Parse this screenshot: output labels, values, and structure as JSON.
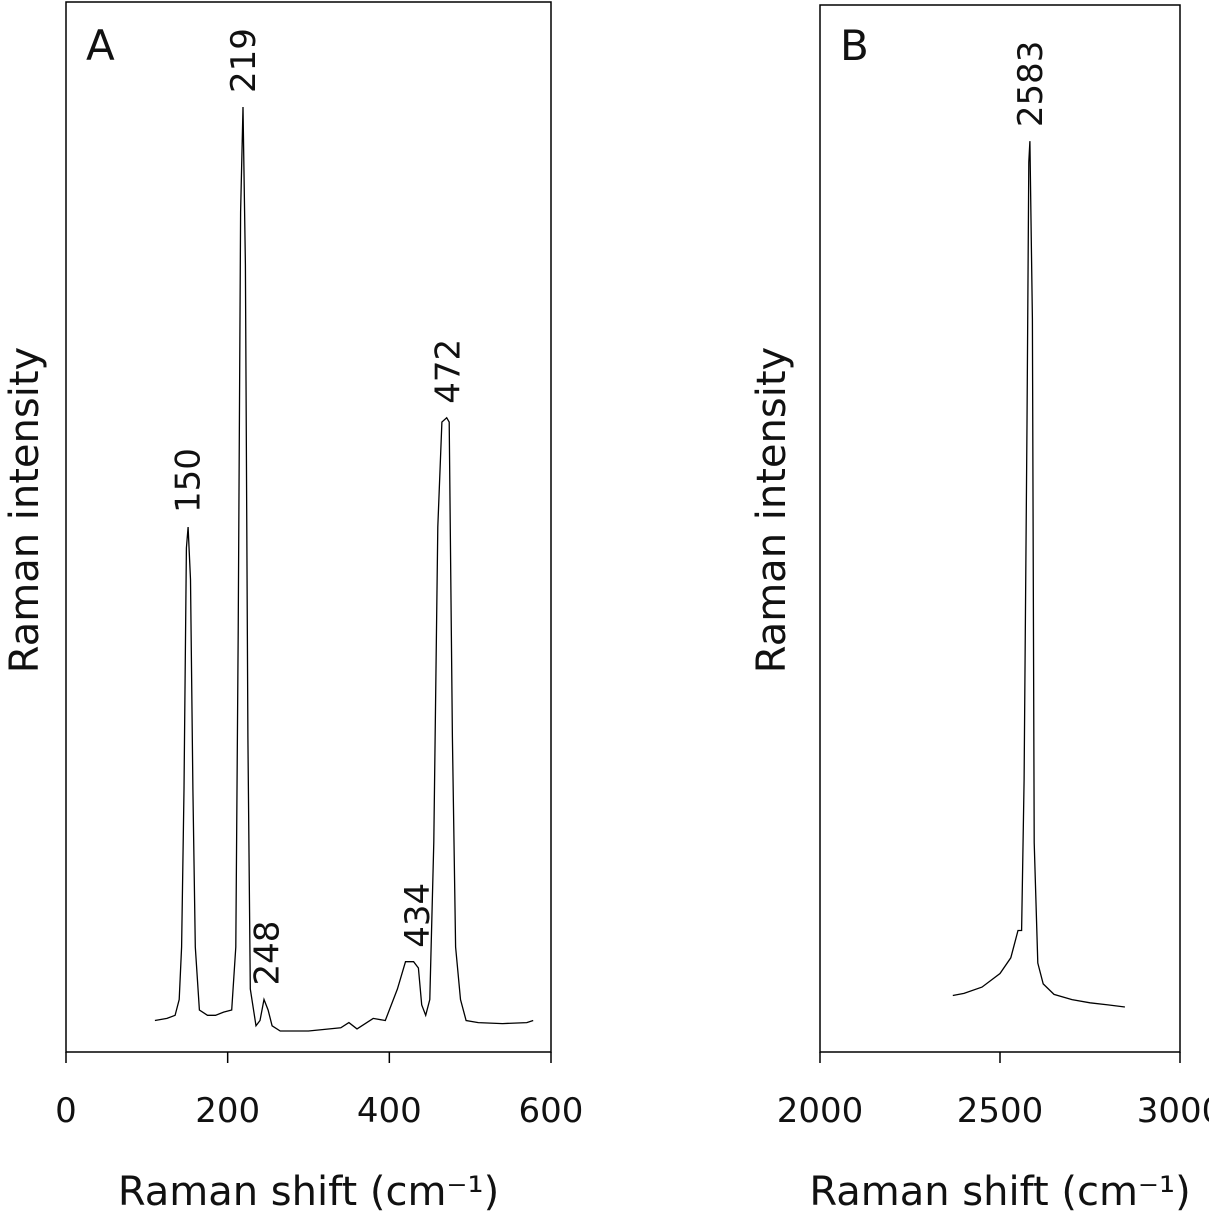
{
  "chart_data": [
    {
      "type": "line",
      "panel_label": "A",
      "ylabel": "Raman intensity",
      "xlabel": "Raman shift (cm⁻¹)",
      "xlim": [
        0,
        600
      ],
      "xticks": [
        0,
        200,
        400,
        600
      ],
      "ylim": [
        0,
        100
      ],
      "color": "#000000",
      "peak_labels": [
        150,
        219,
        248,
        434,
        472
      ],
      "x": [
        110,
        125,
        135,
        140,
        143,
        146,
        149,
        151,
        154,
        157,
        160,
        165,
        175,
        185,
        195,
        205,
        210,
        213,
        216,
        219,
        222,
        225,
        228,
        235,
        240,
        245,
        250,
        255,
        265,
        300,
        340,
        350,
        360,
        380,
        395,
        410,
        420,
        430,
        436,
        440,
        445,
        450,
        455,
        460,
        465,
        471,
        474,
        478,
        482,
        488,
        495,
        510,
        540,
        570,
        578
      ],
      "values": [
        3,
        3.2,
        3.5,
        5,
        10,
        25,
        48,
        50,
        45,
        25,
        10,
        4,
        3.5,
        3.5,
        3.8,
        4,
        10,
        40,
        80,
        90,
        75,
        30,
        6,
        2.5,
        3,
        5,
        4,
        2.5,
        2,
        2,
        2.3,
        2.8,
        2.2,
        3.2,
        3,
        6,
        8.6,
        8.6,
        8,
        4.5,
        3.5,
        5,
        20,
        50,
        60,
        60.4,
        60,
        30,
        10,
        5,
        3,
        2.8,
        2.7,
        2.8,
        3
      ]
    },
    {
      "type": "line",
      "panel_label": "B",
      "ylabel": "Raman intensity",
      "xlabel": "Raman shift (cm⁻¹)",
      "xlim": [
        2000,
        3000
      ],
      "xticks": [
        2000,
        2500,
        3000
      ],
      "ylim": [
        0,
        100
      ],
      "color": "#000000",
      "peak_labels": [
        2583
      ],
      "x": [
        2369,
        2400,
        2450,
        2500,
        2530,
        2550,
        2560,
        2567,
        2575,
        2580,
        2583,
        2590,
        2595,
        2605,
        2620,
        2650,
        2700,
        2750,
        2800,
        2847
      ],
      "values": [
        5.4,
        5.6,
        6.2,
        7.5,
        9,
        11.6,
        11.6,
        26,
        60,
        85,
        87,
        70,
        20,
        8.5,
        6.5,
        5.5,
        5,
        4.7,
        4.5,
        4.3
      ]
    }
  ]
}
